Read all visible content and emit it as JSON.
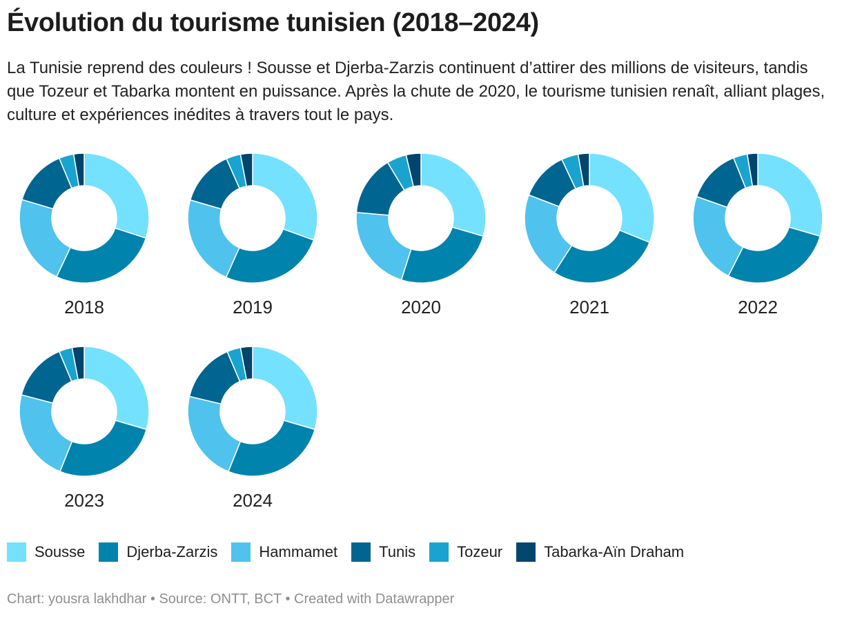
{
  "title": "Évolution du tourisme tunisien (2018–2024)",
  "subtitle": "La Tunisie reprend des couleurs ! Sousse et Djerba-Zarzis continuent d’attirer des millions de visiteurs, tandis que Tozeur et Tabarka montent en puissance. Après la chute de 2020, le tourisme tunisien renaît, alliant plages, culture et expériences inédites à travers tout le pays.",
  "footer": "Chart: yousra lakhdhar • Source: ONTT, BCT • Created with Datawrapper",
  "chart_data": {
    "type": "pie",
    "subtype": "donut small multiples",
    "title": "Évolution du tourisme tunisien (2018–2024)",
    "categories": [
      "Sousse",
      "Djerba-Zarzis",
      "Hammamet",
      "Tunis",
      "Tozeur",
      "Tabarka-Aïn Draham"
    ],
    "colors": [
      "#74e1fe",
      "#0083ad",
      "#4fc3ee",
      "#006590",
      "#1aa3cf",
      "#00456d"
    ],
    "legend_position": "bottom",
    "panels": [
      {
        "label": "2018",
        "values": [
          30.0,
          27.0,
          22.6,
          14.1,
          3.7,
          2.6
        ]
      },
      {
        "label": "2019",
        "values": [
          30.5,
          26.2,
          22.8,
          13.9,
          3.6,
          3.0
        ]
      },
      {
        "label": "2020",
        "values": [
          29.5,
          25.4,
          21.5,
          15.0,
          4.9,
          3.7
        ]
      },
      {
        "label": "2021",
        "values": [
          31.1,
          28.0,
          21.7,
          12.2,
          4.2,
          2.8
        ]
      },
      {
        "label": "2022",
        "values": [
          29.5,
          28.0,
          22.9,
          13.5,
          3.5,
          2.6
        ]
      },
      {
        "label": "2023",
        "values": [
          29.5,
          26.6,
          23.0,
          14.6,
          3.3,
          3.0
        ]
      },
      {
        "label": "2024",
        "values": [
          29.5,
          26.6,
          22.6,
          14.9,
          3.4,
          3.0
        ]
      }
    ]
  }
}
